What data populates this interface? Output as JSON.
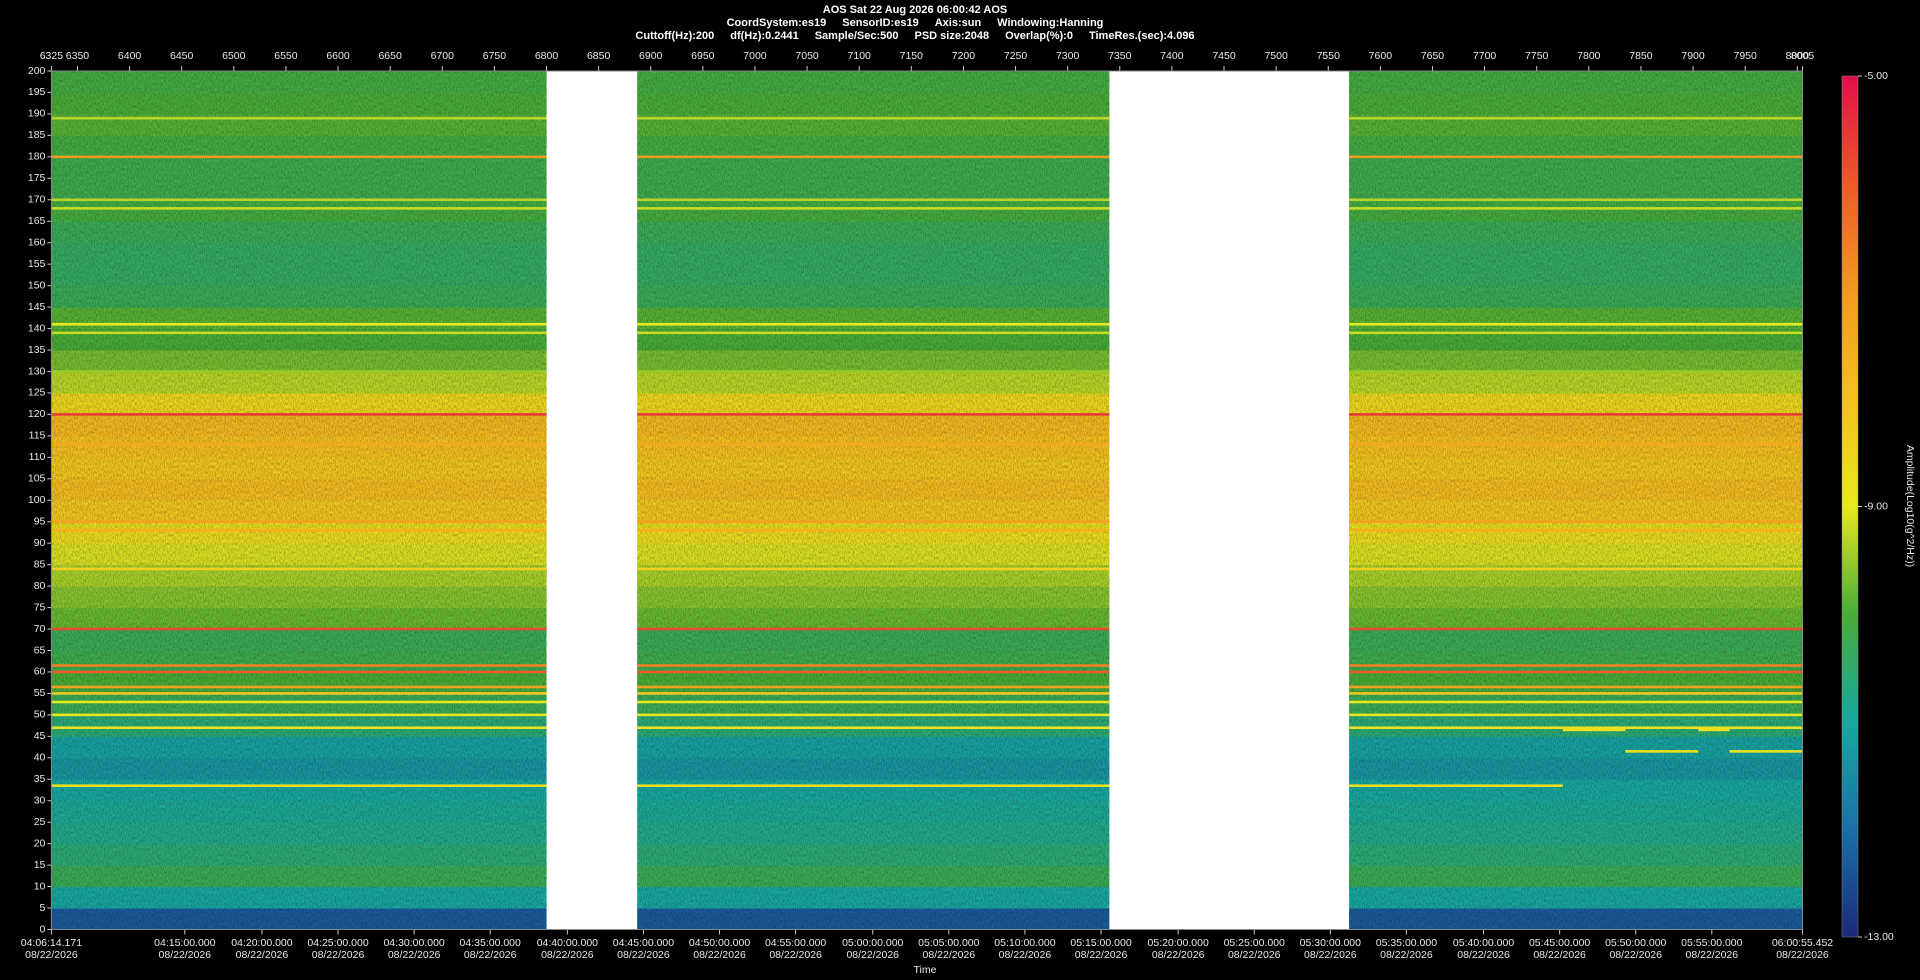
{
  "chart_data": {
    "type": "spectrogram",
    "title": "AOS  Sat 22 Aug 2026 06:00:42  AOS",
    "subtitle": [
      "CoordSystem:es19",
      "SensorID:es19",
      "Axis:sun",
      "Windowing:Hanning"
    ],
    "params": [
      "Cuttoff(Hz):200",
      "df(Hz):0.2441",
      "Sample/Sec:500",
      "PSD size:2048",
      "Overlap(%):0",
      "TimeRes.(sec):4.096"
    ],
    "xlim": [
      6325,
      8005
    ],
    "xticks": [
      6325,
      6350,
      6400,
      6450,
      6500,
      6550,
      6600,
      6650,
      6700,
      6750,
      6800,
      6850,
      6900,
      6950,
      7000,
      7050,
      7100,
      7150,
      7200,
      7250,
      7300,
      7350,
      7400,
      7450,
      7500,
      7550,
      7600,
      7650,
      7700,
      7750,
      7800,
      7850,
      7900,
      7950,
      8000,
      8005
    ],
    "time_ticks": [
      {
        "value": 6325,
        "label": "04:06:14.171",
        "date": "08/22/2026"
      },
      {
        "value": 6453,
        "label": "04:15:00.000",
        "date": "08/22/2026"
      },
      {
        "value": 6527,
        "label": "04:20:00.000",
        "date": "08/22/2026"
      },
      {
        "value": 6600,
        "label": "04:25:00.000",
        "date": "08/22/2026"
      },
      {
        "value": 6673,
        "label": "04:30:00.000",
        "date": "08/22/2026"
      },
      {
        "value": 6746,
        "label": "04:35:00.000",
        "date": "08/22/2026"
      },
      {
        "value": 6820,
        "label": "04:40:00.000",
        "date": "08/22/2026"
      },
      {
        "value": 6893,
        "label": "04:45:00.000",
        "date": "08/22/2026"
      },
      {
        "value": 6966,
        "label": "04:50:00.000",
        "date": "08/22/2026"
      },
      {
        "value": 7039,
        "label": "04:55:00.000",
        "date": "08/22/2026"
      },
      {
        "value": 7113,
        "label": "05:00:00.000",
        "date": "08/22/2026"
      },
      {
        "value": 7186,
        "label": "05:05:00.000",
        "date": "08/22/2026"
      },
      {
        "value": 7259,
        "label": "05:10:00.000",
        "date": "08/22/2026"
      },
      {
        "value": 7332,
        "label": "05:15:00.000",
        "date": "08/22/2026"
      },
      {
        "value": 7406,
        "label": "05:20:00.000",
        "date": "08/22/2026"
      },
      {
        "value": 7479,
        "label": "05:25:00.000",
        "date": "08/22/2026"
      },
      {
        "value": 7552,
        "label": "05:30:00.000",
        "date": "08/22/2026"
      },
      {
        "value": 7625,
        "label": "05:35:00.000",
        "date": "08/22/2026"
      },
      {
        "value": 7699,
        "label": "05:40:00.000",
        "date": "08/22/2026"
      },
      {
        "value": 7772,
        "label": "05:45:00.000",
        "date": "08/22/2026"
      },
      {
        "value": 7845,
        "label": "05:50:00.000",
        "date": "08/22/2026"
      },
      {
        "value": 7918,
        "label": "05:55:00.000",
        "date": "08/22/2026"
      },
      {
        "value": 8005,
        "label": "06:00:55.452",
        "date": "08/22/2026"
      }
    ],
    "time_label": "Time",
    "ylim": [
      0,
      200
    ],
    "yticks": [
      0,
      5,
      10,
      15,
      20,
      25,
      30,
      35,
      40,
      45,
      50,
      55,
      60,
      65,
      70,
      75,
      80,
      85,
      90,
      95,
      100,
      105,
      110,
      115,
      120,
      125,
      130,
      135,
      140,
      145,
      150,
      155,
      160,
      165,
      170,
      175,
      180,
      185,
      190,
      195,
      200
    ],
    "segments": [
      [
        6325,
        6800
      ],
      [
        6887,
        7340
      ],
      [
        7570,
        8005
      ]
    ],
    "bands": {
      "edges": [
        0,
        5,
        10,
        15,
        20,
        25,
        30,
        35,
        40,
        45,
        50,
        55,
        60,
        65,
        70,
        75,
        80,
        85,
        90,
        95,
        100,
        105,
        110,
        115,
        120,
        125,
        130,
        135,
        140,
        145,
        150,
        155,
        160,
        165,
        170,
        175,
        180,
        185,
        190,
        195,
        200
      ],
      "values": [
        -12.3,
        -11.0,
        -10.3,
        -10.6,
        -10.8,
        -10.9,
        -11.0,
        -11.3,
        -11.1,
        -10.6,
        -10.3,
        -10.0,
        -10.2,
        -10.3,
        -9.8,
        -9.6,
        -9.4,
        -9.1,
        -8.7,
        -8.2,
        -7.9,
        -8.2,
        -8.0,
        -7.8,
        -8.6,
        -9.3,
        -9.7,
        -10.0,
        -9.9,
        -10.3,
        -10.4,
        -10.4,
        -10.3,
        -10.1,
        -10.2,
        -10.2,
        -10.1,
        -9.9,
        -10.0,
        -10.1
      ]
    },
    "lines": [
      {
        "freq": 120,
        "value": -5.6
      },
      {
        "freq": 180,
        "value": -7.0
      },
      {
        "freq": 70,
        "value": -5.8
      },
      {
        "freq": 60,
        "value": -6.0
      },
      {
        "freq": 61.5,
        "value": -6.6
      },
      {
        "freq": 56.5,
        "value": -7.2
      },
      {
        "freq": 55,
        "value": -8.2
      },
      {
        "freq": 53,
        "value": -9.0
      },
      {
        "freq": 50,
        "value": -9.0
      },
      {
        "freq": 47,
        "value": -8.8
      },
      {
        "freq": 33.5,
        "value": -8.8,
        "from": 6325,
        "to": 7775
      },
      {
        "freq": 46.5,
        "value": -8.8,
        "from": 7775,
        "to": 7835
      },
      {
        "freq": 41.5,
        "value": -8.8,
        "from": 7835,
        "to": 7905
      },
      {
        "freq": 46.5,
        "value": -8.8,
        "from": 7905,
        "to": 7935
      },
      {
        "freq": 41.5,
        "value": -8.8,
        "from": 7935,
        "to": 8005
      },
      {
        "freq": 95,
        "value": -7.2
      },
      {
        "freq": 93,
        "value": -7.6
      },
      {
        "freq": 113,
        "value": -7.4
      },
      {
        "freq": 84,
        "value": -8.4
      },
      {
        "freq": 130,
        "value": -9.5
      },
      {
        "freq": 139,
        "value": -9.2
      },
      {
        "freq": 141,
        "value": -9.0
      },
      {
        "freq": 168,
        "value": -9.2
      },
      {
        "freq": 170,
        "value": -9.3
      },
      {
        "freq": 189,
        "value": -9.3
      }
    ],
    "colorbar": {
      "label": "Amplitude(Log10(g^2/Hz))",
      "lim": [
        -13,
        -5
      ],
      "ticks": [
        {
          "value": -5,
          "label": "-5.00"
        },
        {
          "value": -9,
          "label": "-9.00"
        },
        {
          "value": -13,
          "label": "-13.00"
        }
      ],
      "colormap": [
        "#1b2a78",
        "#1a70a8",
        "#18a8a0",
        "#48ac38",
        "#e8e820",
        "#f4c020",
        "#f29a20",
        "#ec5a28",
        "#e0104a"
      ]
    }
  }
}
